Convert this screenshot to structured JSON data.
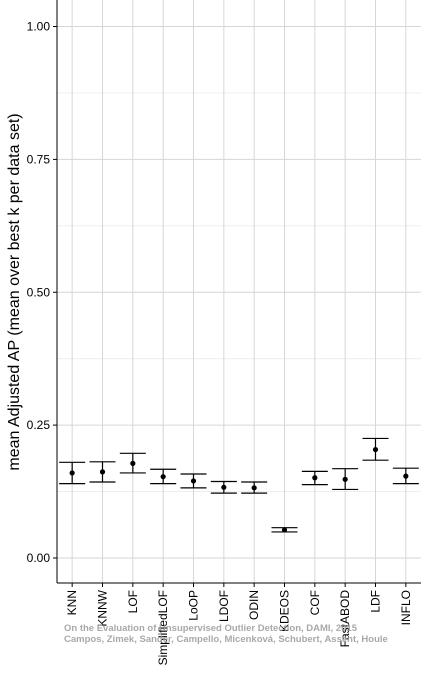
{
  "chart_data": {
    "type": "errorbar",
    "ylabel": "mean Adjusted AP (mean over best k per data set)",
    "xlabel": "",
    "ylim": [
      -0.025,
      1.05
    ],
    "yticks": [
      "0.00",
      "0.25",
      "0.50",
      "0.75",
      "1.00"
    ],
    "ytick_values": [
      0,
      0.25,
      0.5,
      0.75,
      1.0
    ],
    "grid": true,
    "categories": [
      "KNN",
      "KNNW",
      "LOF",
      "SimplifiedLOF",
      "LoOP",
      "LDOF",
      "ODIN",
      "KDEOS",
      "COF",
      "FastABOD",
      "LDF",
      "INFLO"
    ],
    "mean": [
      0.16,
      0.162,
      0.178,
      0.153,
      0.145,
      0.133,
      0.132,
      0.053,
      0.151,
      0.148,
      0.204,
      0.154
    ],
    "lower": [
      0.14,
      0.143,
      0.16,
      0.14,
      0.132,
      0.122,
      0.122,
      0.049,
      0.138,
      0.129,
      0.184,
      0.14
    ],
    "upper": [
      0.18,
      0.181,
      0.197,
      0.167,
      0.158,
      0.144,
      0.143,
      0.057,
      0.163,
      0.168,
      0.225,
      0.169
    ]
  },
  "watermark": {
    "line1": "On the Evaluation of Unsupervised Outlier Detection, DAMI, 2015",
    "line2": "Campos, Zimek, Sander, Campello, Micenková, Schubert, Assent, Houle"
  }
}
